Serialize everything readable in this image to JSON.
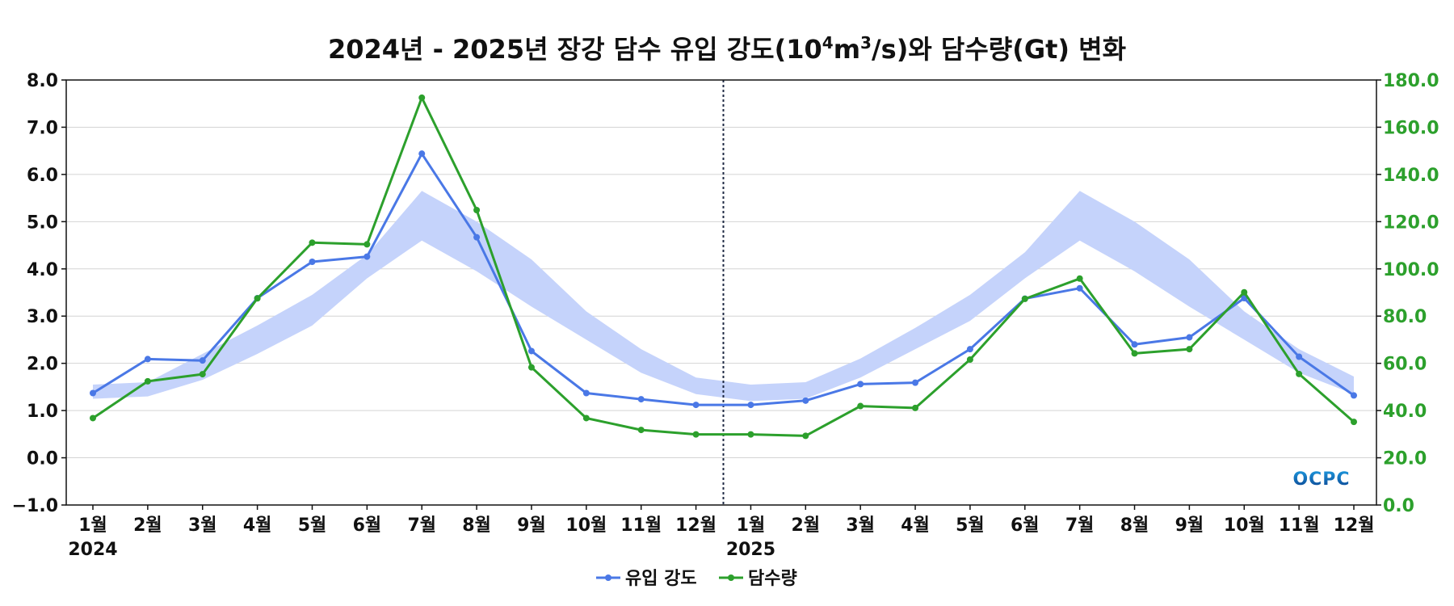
{
  "chart_data": {
    "type": "line",
    "title": {
      "prefix": "2024년 - 2025년 장강 담수 유입 강도(10",
      "sup1": "4",
      "mid": "m",
      "sup2": "3",
      "suffix": "/s)와 담수량(Gt) 변화"
    },
    "categories": [
      "1월",
      "2월",
      "3월",
      "4월",
      "5월",
      "6월",
      "7월",
      "8월",
      "9월",
      "10월",
      "11월",
      "12월",
      "1월",
      "2월",
      "3월",
      "4월",
      "5월",
      "6월",
      "7월",
      "8월",
      "9월",
      "10월",
      "11월",
      "12월"
    ],
    "year_labels": [
      {
        "index": 0,
        "label": "2024"
      },
      {
        "index": 12,
        "label": "2025"
      }
    ],
    "y_left": {
      "ylim": [
        -1.0,
        8.0
      ],
      "ticks": [
        "−1.0",
        "0.0",
        "1.0",
        "2.0",
        "3.0",
        "4.0",
        "5.0",
        "6.0",
        "7.0",
        "8.0"
      ],
      "tick_values": [
        -1,
        0,
        1,
        2,
        3,
        4,
        5,
        6,
        7,
        8
      ]
    },
    "y_right": {
      "ylim": [
        0.0,
        180.0
      ],
      "ticks": [
        "0.0",
        "20.0",
        "40.0",
        "60.0",
        "80.0",
        "100.0",
        "120.0",
        "140.0",
        "160.0",
        "180.0"
      ],
      "tick_values": [
        0,
        20,
        40,
        60,
        80,
        100,
        120,
        140,
        160,
        180
      ],
      "color": "#2ca02c"
    },
    "grid": true,
    "legend_position": "bottom-center",
    "band": {
      "axis": "left",
      "color": "#c5d3fb",
      "lower": [
        1.25,
        1.3,
        1.65,
        2.2,
        2.8,
        3.8,
        4.6,
        3.95,
        3.2,
        2.5,
        1.8,
        1.35,
        1.2,
        1.25,
        1.7,
        2.3,
        2.9,
        3.8,
        4.6,
        3.95,
        3.2,
        2.5,
        1.8,
        1.35
      ],
      "upper": [
        1.55,
        1.6,
        2.2,
        2.8,
        3.45,
        4.3,
        5.65,
        5.0,
        4.2,
        3.1,
        2.3,
        1.7,
        1.55,
        1.6,
        2.1,
        2.75,
        3.45,
        4.35,
        5.65,
        5.0,
        4.2,
        3.1,
        2.3,
        1.72
      ]
    },
    "divider": {
      "after_index": 11,
      "color": "#1f2a44"
    },
    "series": [
      {
        "name": "유입 강도",
        "axis": "left",
        "color": "#4a78e6",
        "values": [
          1.37,
          2.09,
          2.06,
          3.38,
          4.15,
          4.26,
          6.44,
          4.67,
          2.26,
          1.37,
          1.24,
          1.12,
          1.12,
          1.21,
          1.56,
          1.59,
          2.3,
          3.37,
          3.59,
          2.4,
          2.55,
          3.38,
          2.14,
          1.32
        ]
      },
      {
        "name": "담수량",
        "axis": "right",
        "color": "#2ca02c",
        "values": [
          36.8,
          52.4,
          55.4,
          87.5,
          111.1,
          110.4,
          172.5,
          124.9,
          58.3,
          36.8,
          31.8,
          29.9,
          29.9,
          29.3,
          41.9,
          41.1,
          61.6,
          87.3,
          95.9,
          64.2,
          66.0,
          90.1,
          55.5,
          35.2
        ]
      }
    ]
  },
  "logo": {
    "text": "OCPC",
    "color_top": "#1e9be0",
    "color_bottom": "#0a3f8c"
  }
}
